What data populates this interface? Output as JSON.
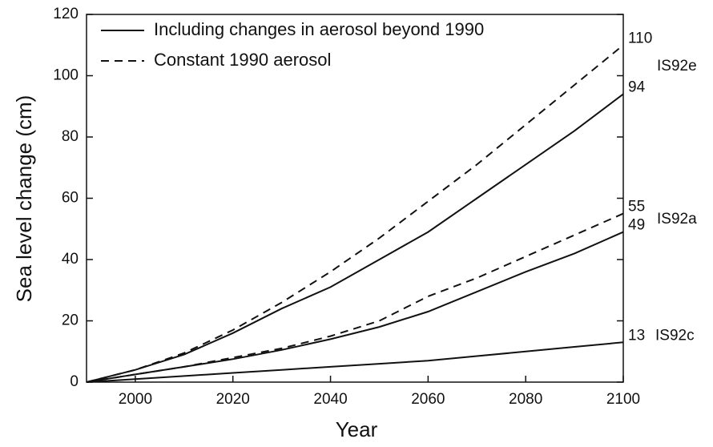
{
  "chart_data": {
    "type": "line",
    "x_label": "Year",
    "y_label": "Sea level change (cm)",
    "x": [
      1990,
      2000,
      2010,
      2020,
      2030,
      2040,
      2050,
      2060,
      2070,
      2080,
      2090,
      2100
    ],
    "xlim": [
      1990,
      2100
    ],
    "xticks": [
      2000,
      2020,
      2040,
      2060,
      2080,
      2100
    ],
    "ylim": [
      0,
      120
    ],
    "yticks": [
      0,
      20,
      40,
      60,
      80,
      100,
      120
    ],
    "color": "#111111",
    "series": [
      {
        "name": "Including changes in aerosol beyond 1990",
        "dashed": false,
        "scenario": "IS92e",
        "values": [
          0,
          4,
          9,
          16,
          24,
          31,
          40,
          49,
          60,
          71,
          82,
          94
        ]
      },
      {
        "name": "Constant 1990 aerosol",
        "dashed": true,
        "scenario": "IS92e",
        "values": [
          0,
          4,
          9.5,
          17,
          26,
          36,
          47,
          59,
          71,
          84,
          97,
          110
        ]
      },
      {
        "name": "Constant 1990 aerosol",
        "dashed": true,
        "scenario": "IS92a",
        "values": [
          0,
          2.5,
          5,
          8,
          11,
          15,
          20,
          28,
          34,
          41,
          48,
          55
        ]
      },
      {
        "name": "Including changes in aerosol beyond 1990",
        "dashed": false,
        "scenario": "IS92a",
        "values": [
          0,
          2.5,
          5,
          7.5,
          10.5,
          14,
          18,
          23,
          29.5,
          36,
          42,
          49
        ]
      },
      {
        "name": "Including changes in aerosol beyond 1990",
        "dashed": false,
        "scenario": "IS92c",
        "values": [
          0,
          1,
          2,
          3,
          4,
          5,
          6,
          7,
          8.5,
          10,
          11.5,
          13
        ]
      }
    ]
  }
}
